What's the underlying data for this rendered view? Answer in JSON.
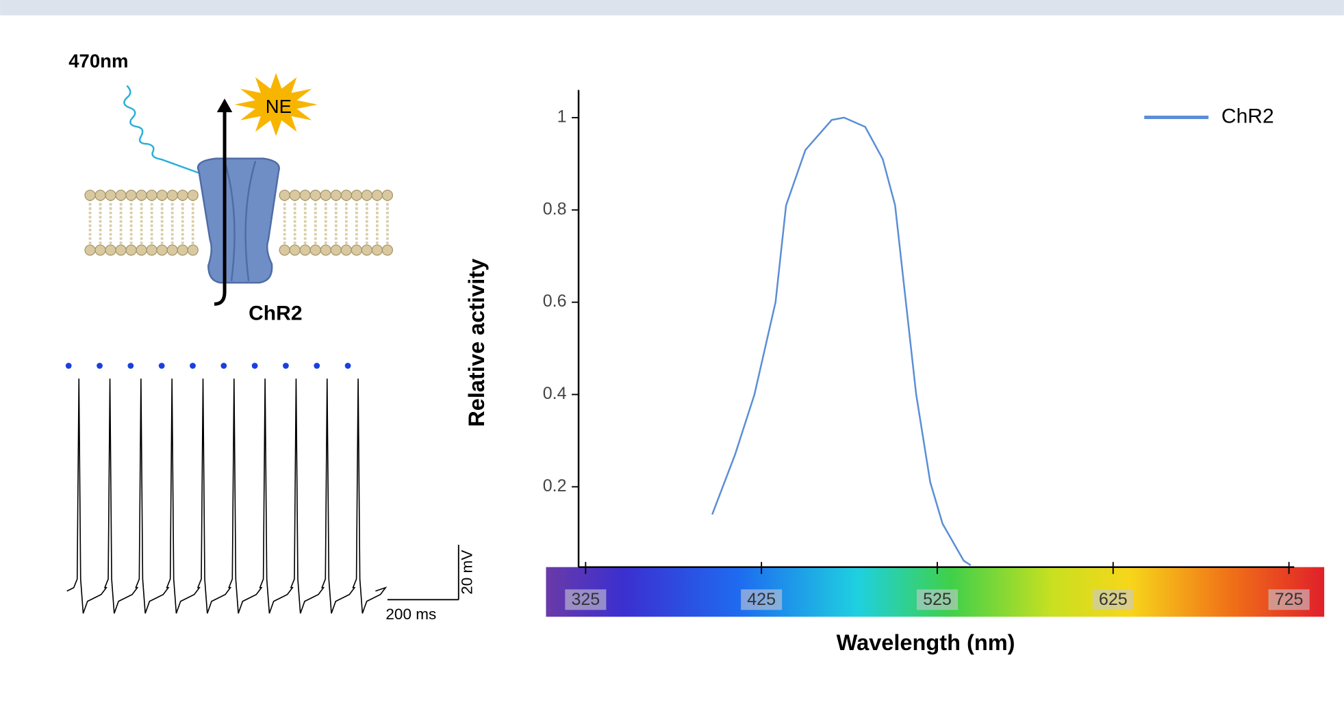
{
  "chart_data": {
    "type": "line",
    "xlabel": "Wavelength (nm)",
    "ylabel": "Relative activity",
    "x": [
      397,
      410,
      421,
      433,
      439,
      450,
      465,
      472,
      484,
      494,
      501,
      506,
      513,
      521,
      528,
      540,
      544
    ],
    "series": [
      {
        "name": "ChR2",
        "color": "#5b8ed6",
        "values": [
          0.14,
          0.27,
          0.4,
          0.6,
          0.81,
          0.93,
          0.995,
          1.0,
          0.98,
          0.91,
          0.81,
          0.64,
          0.4,
          0.21,
          0.12,
          0.04,
          0.03
        ]
      }
    ],
    "xlim": [
      321,
      728
    ],
    "ylim": [
      0.026,
      1.06
    ],
    "xticks": [
      325,
      425,
      525,
      625,
      725
    ],
    "yticks": [
      0.2,
      0.4,
      0.6,
      0.8,
      1
    ],
    "legend": "top-right"
  },
  "diagram": {
    "light_label": "470nm",
    "transmitter_label": "NE",
    "channel_label": "ChR2",
    "scale_bar": {
      "voltage": "20 mV",
      "time": "200 ms"
    }
  }
}
